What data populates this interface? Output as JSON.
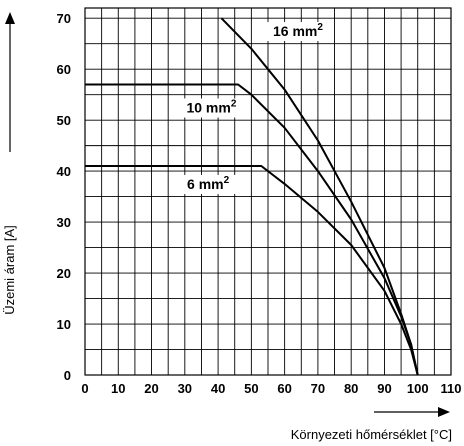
{
  "chart_data": {
    "type": "line",
    "xlabel": "Környezeti hőmérséklet [°C]",
    "ylabel": "Üzemi áram [A]",
    "xlim": [
      0,
      110
    ],
    "ylim": [
      0,
      72
    ],
    "x_ticks": [
      0,
      10,
      20,
      30,
      40,
      50,
      60,
      70,
      80,
      90,
      100,
      110
    ],
    "y_ticks": [
      0,
      10,
      20,
      30,
      40,
      50,
      60,
      70
    ],
    "grid": true,
    "series": [
      {
        "name": "16 mm2",
        "label_main": "16 mm",
        "label_sup": "2",
        "points": [
          [
            41,
            70
          ],
          [
            50,
            64
          ],
          [
            60,
            56
          ],
          [
            70,
            46
          ],
          [
            80,
            34
          ],
          [
            90,
            21
          ],
          [
            95,
            12
          ],
          [
            98,
            6
          ],
          [
            100,
            0
          ]
        ]
      },
      {
        "name": "10 mm2",
        "label_main": "10 mm",
        "label_sup": "2",
        "points": [
          [
            0,
            57
          ],
          [
            46,
            57
          ],
          [
            50,
            55
          ],
          [
            60,
            48.5
          ],
          [
            70,
            40
          ],
          [
            80,
            30.5
          ],
          [
            90,
            19
          ],
          [
            95,
            11.5
          ],
          [
            98,
            6
          ],
          [
            100,
            0
          ]
        ]
      },
      {
        "name": "6 mm2",
        "label_main": "6 mm",
        "label_sup": "2",
        "points": [
          [
            0,
            41
          ],
          [
            53,
            41
          ],
          [
            60,
            37.5
          ],
          [
            70,
            32
          ],
          [
            80,
            25.5
          ],
          [
            90,
            16.5
          ],
          [
            95,
            10
          ],
          [
            98,
            5
          ],
          [
            100,
            0
          ]
        ]
      }
    ]
  }
}
